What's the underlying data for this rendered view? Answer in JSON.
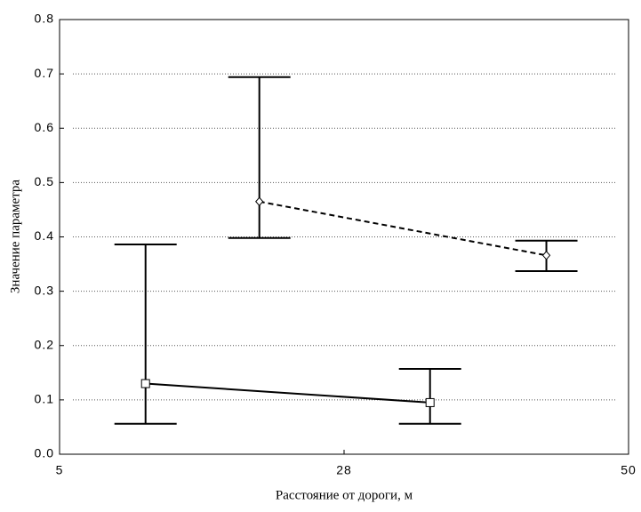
{
  "chart_data": {
    "type": "errorbar-line",
    "xlabel": "Расстояние от дороги, м",
    "ylabel": "Значение параметра",
    "xlim": [
      5,
      50
    ],
    "xticks": [
      5,
      {
        "value": 27.5,
        "label": "28"
      },
      50
    ],
    "ylim": [
      0,
      0.8
    ],
    "yticks": [
      {
        "value": 0,
        "label": "0.0"
      },
      0.1,
      0.2,
      0.3,
      0.4,
      0.5,
      0.6,
      0.7,
      0.8
    ],
    "grid": true,
    "series": [
      {
        "color": "#000000",
        "line_style": "solid",
        "marker": "square",
        "x": [
          11.8,
          34.3
        ],
        "values": [
          0.13,
          0.095
        ],
        "low": [
          0.056,
          0.056
        ],
        "high": [
          0.386,
          0.157
        ]
      },
      {
        "color": "#000000",
        "line_style": "dashed",
        "marker": "diamond",
        "x": [
          20.8,
          43.5
        ],
        "values": [
          0.465,
          0.366
        ],
        "low": [
          0.398,
          0.337
        ],
        "high": [
          0.694,
          0.393
        ]
      }
    ]
  }
}
